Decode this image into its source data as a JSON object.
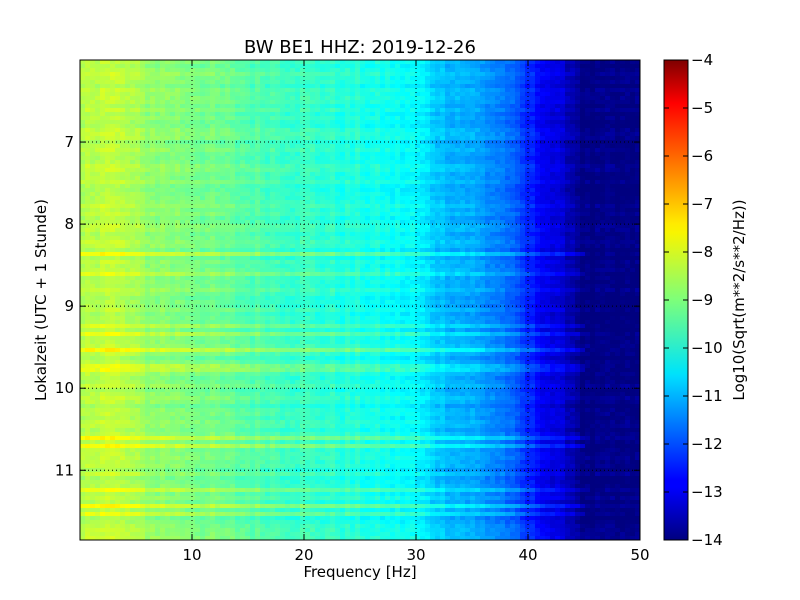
{
  "chart_data": {
    "type": "heatmap",
    "title": "BW BE1 HHZ: 2019-12-26",
    "xlabel": "Frequency [Hz]",
    "ylabel": "Lokalzeit (UTC + 1 Stunde)",
    "xlim": [
      0,
      50
    ],
    "ylim": [
      6.0,
      11.85
    ],
    "y_inverted": true,
    "grid": true,
    "x_ticks": [
      10,
      20,
      30,
      40,
      50
    ],
    "x_tick_labels": [
      "10",
      "20",
      "30",
      "40",
      "50"
    ],
    "y_ticks": [
      7,
      8,
      9,
      10,
      11
    ],
    "y_tick_labels": [
      "7",
      "8",
      "9",
      "10",
      "11"
    ],
    "colormap": "jet",
    "colorbar": {
      "label": "Log10(Sqrt(m**2/s**2/Hz))",
      "range": [
        -14,
        -4
      ],
      "ticks": [
        -4,
        -5,
        -6,
        -7,
        -8,
        -9,
        -10,
        -11,
        -12,
        -13,
        -14
      ],
      "tick_labels": [
        "−4",
        "−5",
        "−6",
        "−7",
        "−8",
        "−9",
        "−10",
        "−11",
        "−12",
        "−13",
        "−14"
      ]
    },
    "spectrum_profile": {
      "frequency_hz": [
        0,
        2,
        4,
        6,
        10,
        15,
        20,
        25,
        30,
        32,
        35,
        38,
        40,
        42,
        44,
        45,
        50
      ],
      "level": [
        -8.6,
        -8.3,
        -8.5,
        -8.8,
        -9.0,
        -9.4,
        -9.7,
        -10.0,
        -10.3,
        -10.8,
        -11.1,
        -11.6,
        -12.4,
        -13.0,
        -13.5,
        -14.0,
        -14.0
      ]
    },
    "noise_bands": [
      {
        "time": 8.35,
        "boost": 0.6
      },
      {
        "time": 8.6,
        "boost": 0.5
      },
      {
        "time": 9.25,
        "boost": 0.4
      },
      {
        "time": 9.35,
        "boost": 0.4
      },
      {
        "time": 9.55,
        "boost": 0.7
      },
      {
        "time": 9.75,
        "boost": 0.5
      },
      {
        "time": 10.6,
        "boost": 0.5
      },
      {
        "time": 10.7,
        "boost": 0.8
      },
      {
        "time": 11.25,
        "boost": 0.4
      },
      {
        "time": 11.42,
        "boost": 0.6
      },
      {
        "time": 11.52,
        "boost": 0.5
      }
    ]
  }
}
